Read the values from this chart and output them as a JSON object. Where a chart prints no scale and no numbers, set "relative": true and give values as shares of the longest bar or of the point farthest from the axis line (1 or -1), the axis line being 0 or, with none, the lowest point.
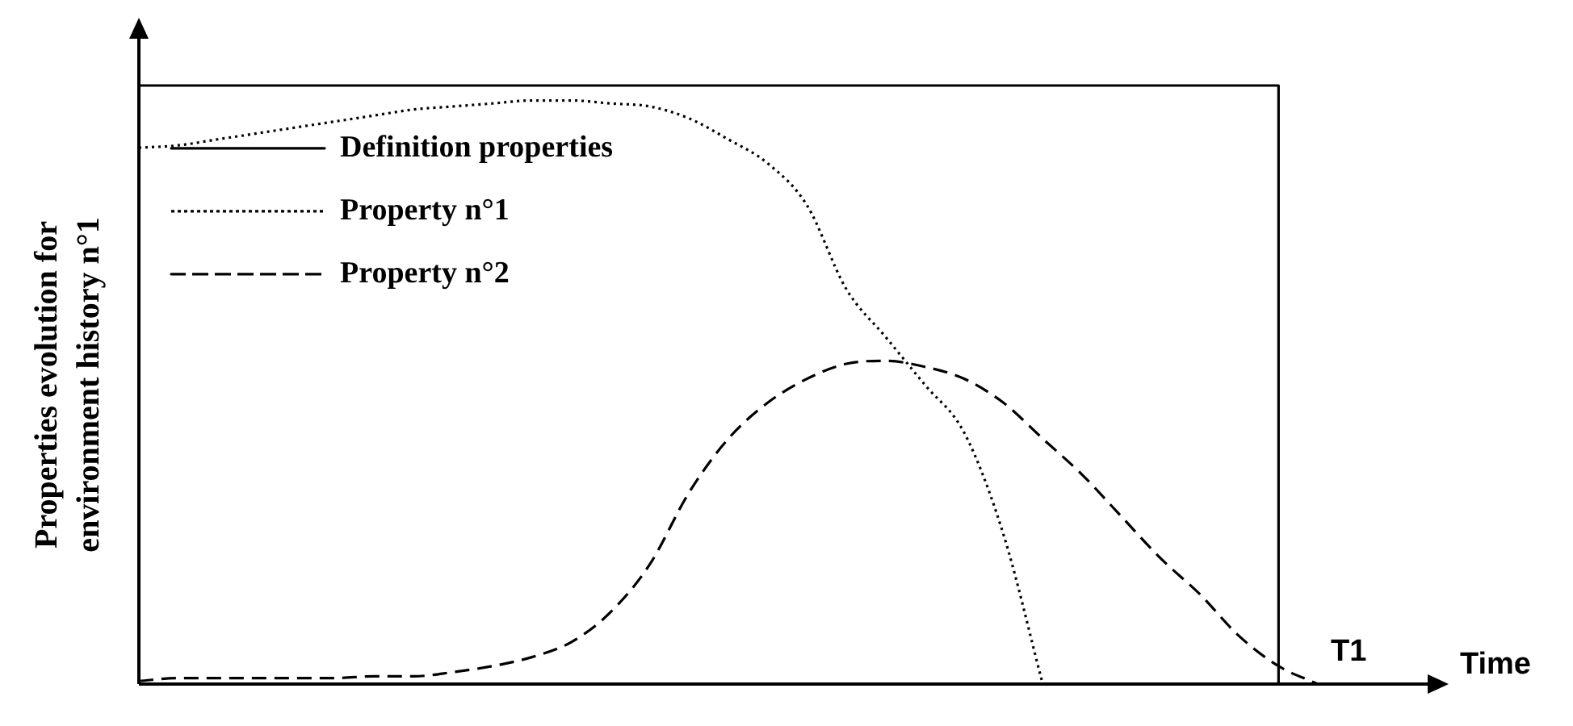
{
  "chart_data": {
    "type": "line",
    "relative": true,
    "xlabel": "Time",
    "ylabel": "Properties evolution for environment history n°1",
    "annotations": [
      "T1"
    ],
    "grid": false,
    "legend": "top left",
    "marker": "none",
    "categories": [
      null,
      null,
      null,
      null,
      null,
      null,
      null,
      null,
      null,
      null,
      null,
      null,
      null,
      null,
      null,
      null,
      null,
      null,
      null,
      null,
      null,
      null,
      null,
      null,
      null,
      null,
      null,
      null,
      null,
      null,
      null
    ],
    "series": [
      {
        "name": "Definition properties",
        "type": "step",
        "color": "#000000",
        "line_style": "solid",
        "values": [
          1,
          1,
          1,
          1,
          1,
          1,
          1,
          1,
          1,
          1,
          1,
          1,
          1,
          1,
          1,
          1,
          1,
          1,
          1,
          1,
          1,
          1,
          1,
          1,
          1,
          1,
          1,
          1,
          1,
          1,
          0
        ]
      },
      {
        "name": "Property n°1",
        "color": "#000000",
        "line_style": "dotted",
        "values": [
          0.896,
          0.9,
          0.91,
          0.92,
          0.93,
          0.94,
          0.95,
          0.96,
          0.965,
          0.97,
          0.975,
          0.975,
          0.97,
          0.965,
          0.945,
          0.91,
          0.87,
          0.8,
          0.66,
          0.58,
          0.5,
          0.42,
          0.25,
          0,
          null,
          null,
          null,
          null,
          null,
          null,
          null
        ]
      },
      {
        "name": "Property n°2",
        "color": "#000000",
        "line_style": "dashed",
        "values": [
          0.005,
          0.01,
          0.01,
          0.01,
          0.01,
          0.01,
          0.013,
          0.013,
          0.02,
          0.03,
          0.045,
          0.07,
          0.12,
          0.2,
          0.32,
          0.41,
          0.47,
          0.51,
          0.535,
          0.54,
          0.53,
          0.51,
          0.47,
          0.41,
          0.35,
          0.28,
          0.21,
          0.15,
          0.08,
          0.03,
          0
        ]
      }
    ]
  }
}
